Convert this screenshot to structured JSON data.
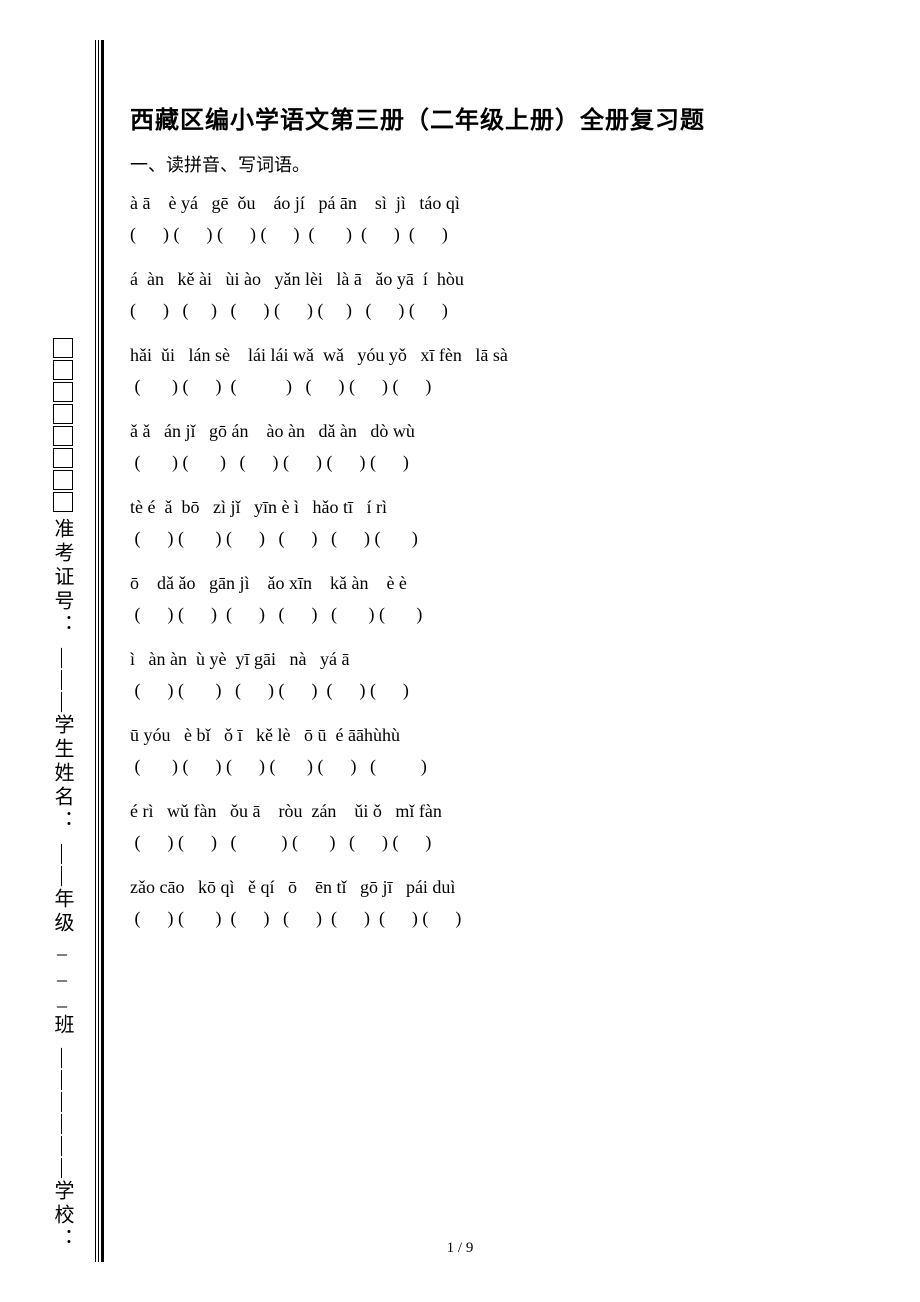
{
  "title": "西藏区编小学语文第三册（二年级上册）全册复习题",
  "section_heading": "一、读拼音、写词语。",
  "sidebar": {
    "boxes_count": 8,
    "fields": [
      {
        "label": "准考证号：",
        "line": ""
      },
      {
        "label": "学生姓名：",
        "line": "———"
      },
      {
        "label": "年级___班",
        "line_before": "———",
        "line_after": "——"
      },
      {
        "label": "学校：",
        "line": "———"
      }
    ]
  },
  "rows": [
    {
      "pinyin": "à ā    è yá   gē  ǒu    áo jí   pá ān    sì  jì   táo qì",
      "blanks": "(      ) (      ) (      ) (      )  (       )  (      )  (      )"
    },
    {
      "pinyin": "á  àn   kě ài   ùi ào   yǎn lèi   là ā   ǎo yā  í  hòu",
      "blanks": "(      )   (     )   (      ) (      ) (     )   (      ) (      )"
    },
    {
      "pinyin": "hǎi  ǔi   lán sè    lái lái wǎ  wǎ   yóu yǒ   xī fèn   lā sà",
      "blanks": " (       ) (      )  (           )   (      ) (      ) (      )"
    },
    {
      "pinyin": "ǎ ǎ   án jǐ   gō án    ào àn   dǎ àn   dò wù",
      "blanks": " (       ) (       )   (      ) (      ) (      ) (      )"
    },
    {
      "pinyin": "tè é  ǎ  bō   zì jǐ   yīn è ì   hǎo tī   í rì",
      "blanks": " (      ) (       ) (      )   (      )   (      ) (       )"
    },
    {
      "pinyin": "ō    dǎ ǎo   gān jì    ǎo xīn    kǎ àn    è è",
      "blanks": " (      ) (      )  (      )   (      )   (       ) (       )"
    },
    {
      "pinyin": "ì   àn àn  ù yè  yī gāi   nà   yá ā",
      "blanks": " (      ) (       )   (      ) (      )  (      ) (      )"
    },
    {
      "pinyin": "ū yóu   è bǐ   ǒ ī   kě lè   ō ū  é āāhùhù",
      "blanks": " (       ) (      ) (      ) (       ) (      )   (          )"
    },
    {
      "pinyin": "é rì   wǔ fàn   ǒu ā    ròu  zán    ǔi ǒ   mǐ fàn",
      "blanks": " (      ) (      )   (          ) (       )   (      ) (      )"
    },
    {
      "pinyin": "zǎo cāo   kō qì   ě qí   ō    ēn tǐ   gō jī   pái duì",
      "blanks": " (      ) (       )  (      )   (      )  (      )  (      ) (      )"
    }
  ],
  "page_number": "1 / 9",
  "colors": {
    "background": "#ffffff",
    "text": "#000000",
    "border": "#000000"
  },
  "fonts": {
    "body": "SimSun",
    "title_size": 24,
    "body_size": 18,
    "sidebar_size": 20
  }
}
